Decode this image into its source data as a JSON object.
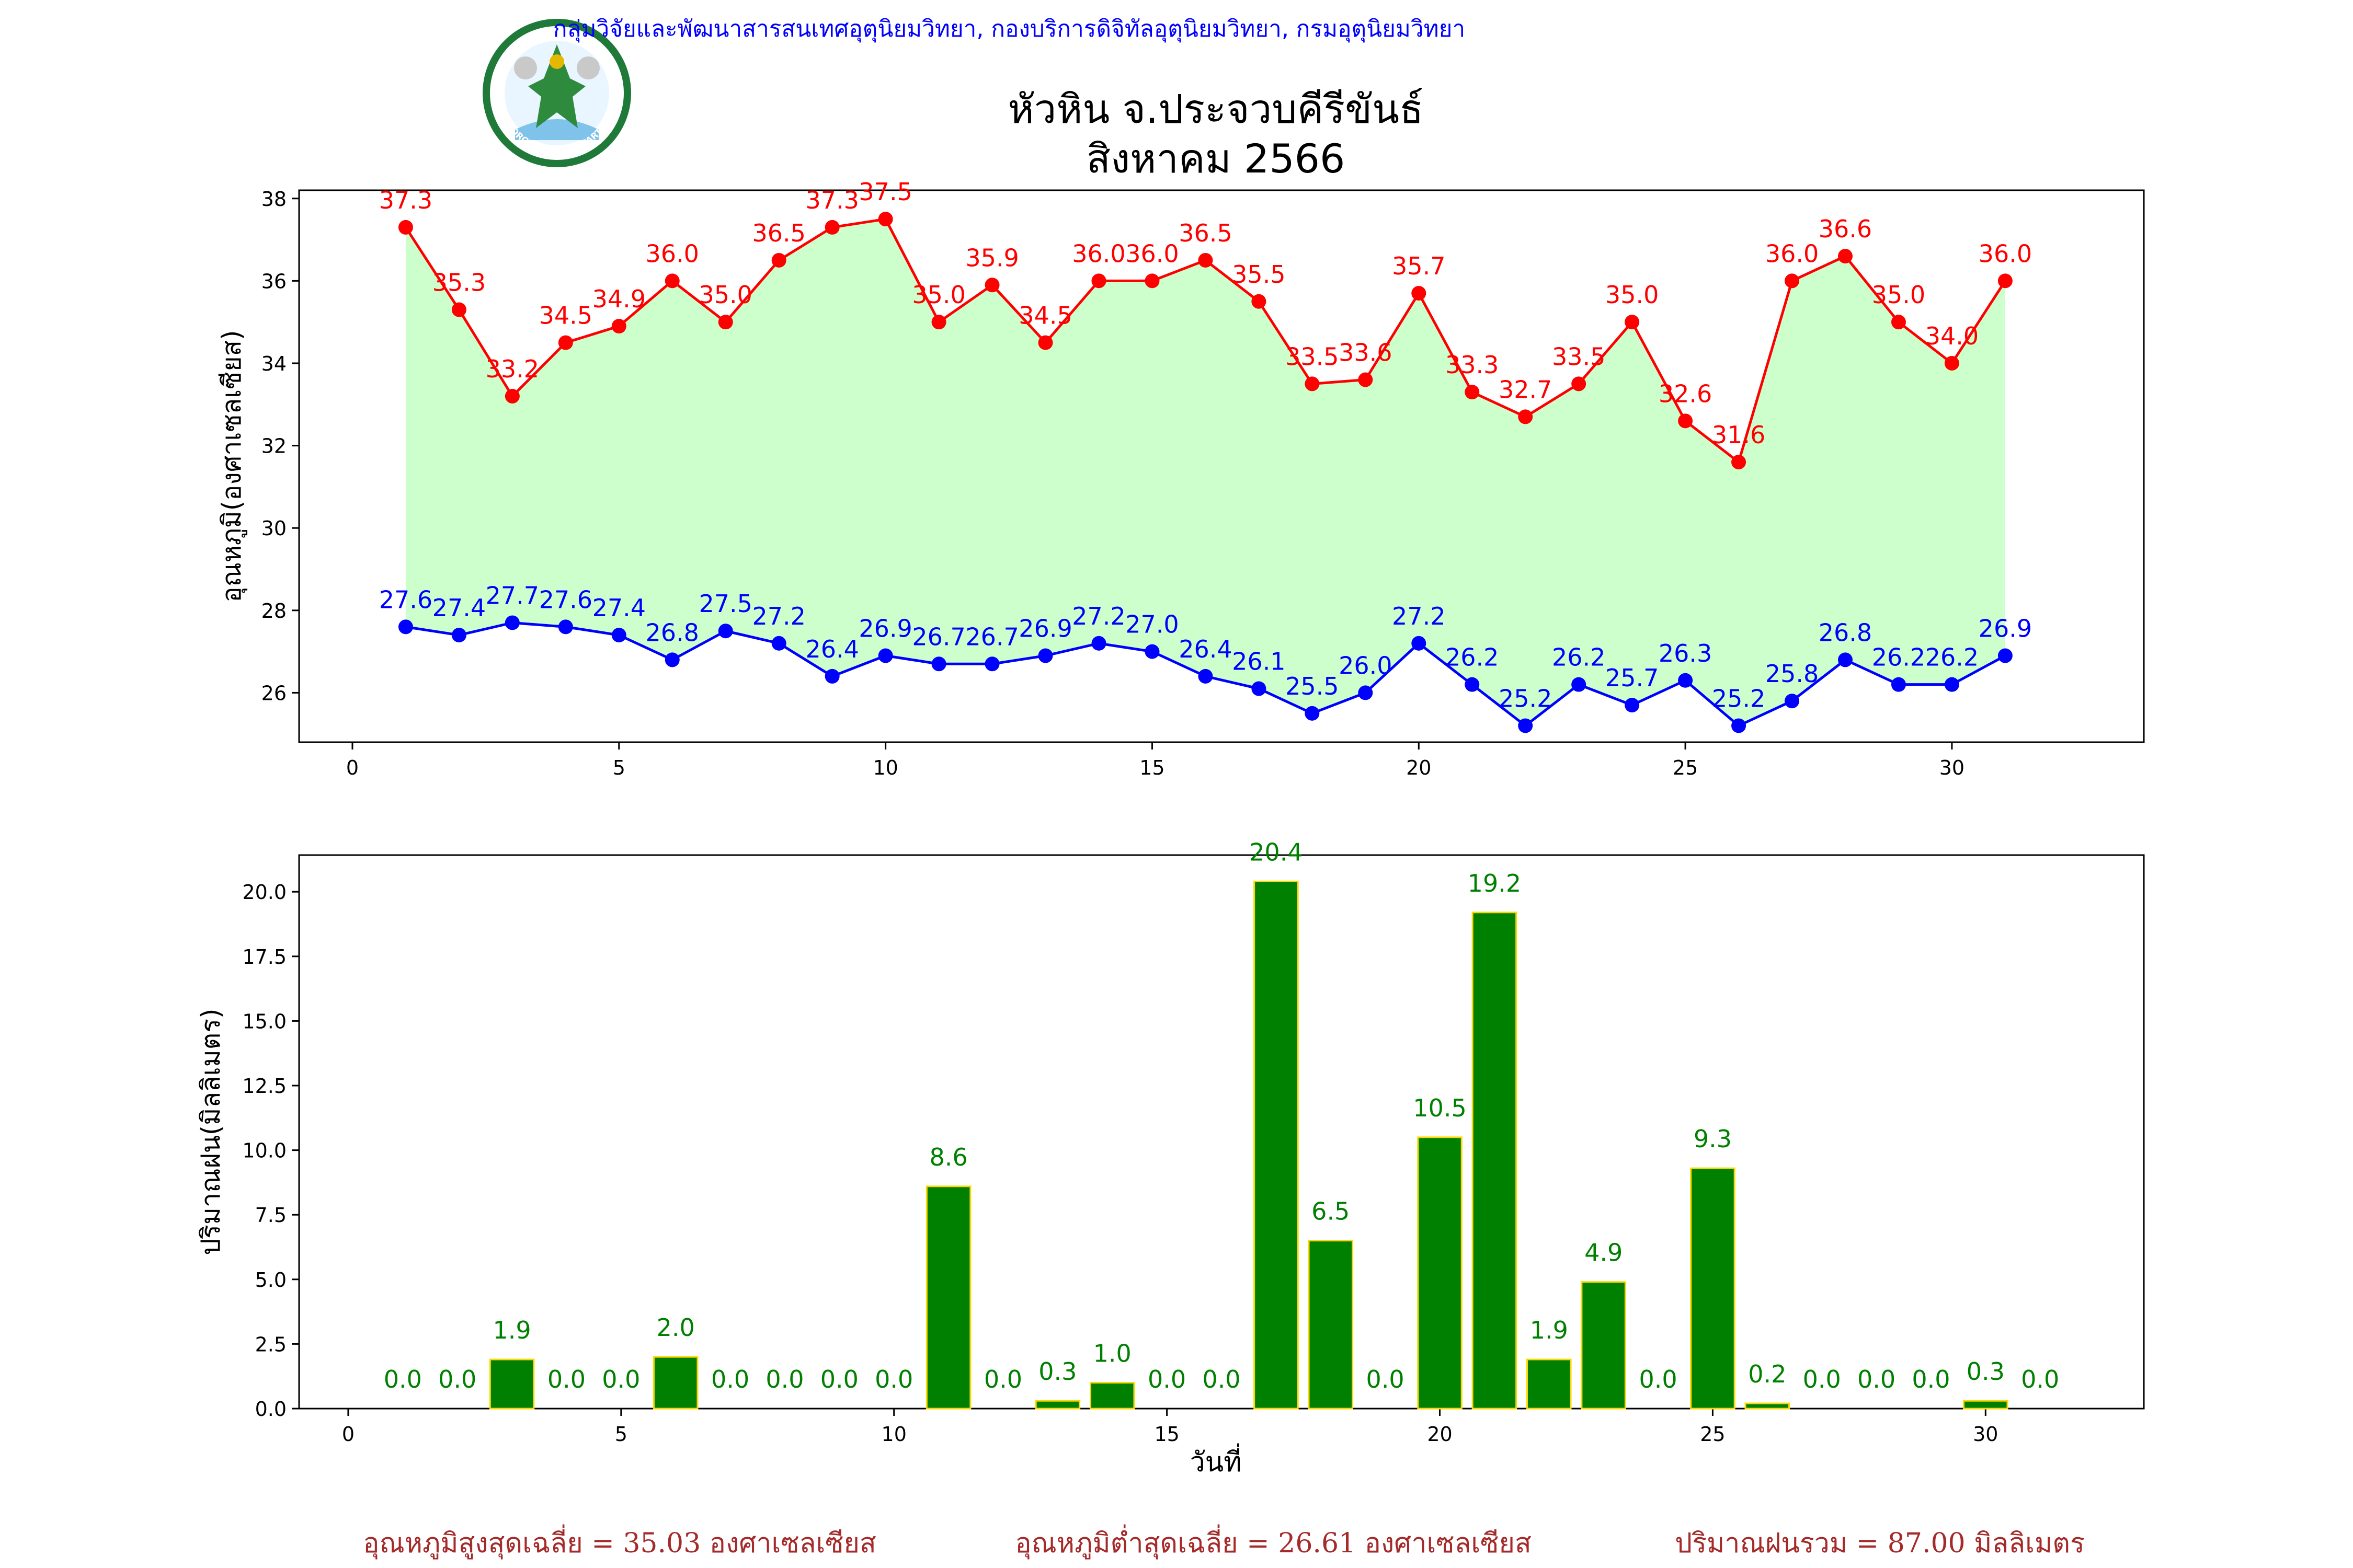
{
  "header": {
    "organization": "กลุ่มวิจัยและพัฒนาสารสนเทศอุตุนิยมวิทยา, กองบริการดิจิทัลอุตุนิยมวิทยา, กรมอุตุนิยมวิทยา",
    "title": "หัวหิน จ.ประจวบคีรีขันธ์",
    "subtitle": "สิงหาคม 2566",
    "logo_text_top": "กรมอุตุนิยมวิทยา",
    "logo_text_bottom": "METEOROLOGICAL DEPARTMENT"
  },
  "colors": {
    "max_temp": "#ff0000",
    "min_temp": "#0000ff",
    "fill": "#ccffcc",
    "rain_bar": "#008000",
    "rain_edge": "#ffd700",
    "org_text": "#0000ff",
    "footer_text": "#a52a2a"
  },
  "footer": {
    "avg_max": "อุณหภูมิสูงสุดเฉลี่ย = 35.03 องศาเซลเซียส",
    "avg_min": "อุณหภูมิต่ำสุดเฉลี่ย = 26.61 องศาเซลเซียส",
    "rain_total": "ปริมาณฝนรวม = 87.00 มิลลิเมตร"
  },
  "chart_data": [
    {
      "type": "line",
      "ylabel": "อุณหภูมิ(องศาเซลเซียส)",
      "xlabel": "",
      "xlim": [
        -1,
        33.6
      ],
      "ylim": [
        24.8,
        38.2
      ],
      "xticks": [
        0,
        5,
        10,
        15,
        20,
        25,
        30
      ],
      "yticks": [
        26,
        28,
        30,
        32,
        34,
        36,
        38
      ],
      "x": [
        1,
        2,
        3,
        4,
        5,
        6,
        7,
        8,
        9,
        10,
        11,
        12,
        13,
        14,
        15,
        16,
        17,
        18,
        19,
        20,
        21,
        22,
        23,
        24,
        25,
        26,
        27,
        28,
        29,
        30,
        31
      ],
      "series": [
        {
          "key": "max",
          "values": [
            37.3,
            35.3,
            33.2,
            34.5,
            34.9,
            36.0,
            35.0,
            36.5,
            37.3,
            37.5,
            35.0,
            35.9,
            34.5,
            36.0,
            36.0,
            36.5,
            35.5,
            33.5,
            33.6,
            35.7,
            33.3,
            32.7,
            33.5,
            35.0,
            32.6,
            31.6,
            36.0,
            36.6,
            35.0,
            34.0,
            36.0
          ],
          "labels": [
            "37.3",
            "35.3",
            "33.2",
            "34.5",
            "34.9",
            "36.0",
            "35.0",
            "36.5",
            "37.3",
            "37.5",
            "35.0",
            "35.9",
            "34.5",
            "36.0",
            "36.0",
            "36.5",
            "35.5",
            "33.5",
            "33.6",
            "35.7",
            "33.3",
            "32.7",
            "33.5",
            "35.0",
            "32.6",
            "31.6",
            "36.0",
            "36.6",
            "35.0",
            "34.0",
            "36.0"
          ]
        },
        {
          "key": "min",
          "values": [
            27.6,
            27.4,
            27.7,
            27.6,
            27.4,
            26.8,
            27.5,
            27.2,
            26.4,
            26.9,
            26.7,
            26.7,
            26.9,
            27.2,
            27.0,
            26.4,
            26.1,
            25.5,
            26.0,
            27.2,
            26.2,
            25.2,
            26.2,
            25.7,
            26.3,
            25.2,
            25.8,
            26.8,
            26.2,
            26.2,
            26.9
          ],
          "labels": [
            "27.6",
            "27.4",
            "27.7",
            "27.6",
            "27.4",
            "26.8",
            "27.5",
            "27.2",
            "26.4",
            "26.9",
            "26.7",
            "26.7",
            "26.9",
            "27.2",
            "27.0",
            "26.4",
            "26.1",
            "25.5",
            "26.0",
            "27.2",
            "26.2",
            "25.2",
            "26.2",
            "25.7",
            "26.3",
            "25.2",
            "25.8",
            "26.8",
            "26.2",
            "26.2",
            "26.9"
          ]
        }
      ]
    },
    {
      "type": "bar",
      "ylabel": "ปริมาณฝน(มิลลิเมตร)",
      "xlabel": "วันที่",
      "xlim": [
        -0.9,
        32.9
      ],
      "ylim": [
        0,
        21.42
      ],
      "xticks": [
        0,
        5,
        10,
        15,
        20,
        25,
        30
      ],
      "yticks": [
        "0.0",
        "2.5",
        "5.0",
        "7.5",
        "10.0",
        "12.5",
        "15.0",
        "17.5",
        "20.0"
      ],
      "x": [
        1,
        2,
        3,
        4,
        5,
        6,
        7,
        8,
        9,
        10,
        11,
        12,
        13,
        14,
        15,
        16,
        17,
        18,
        19,
        20,
        21,
        22,
        23,
        24,
        25,
        26,
        27,
        28,
        29,
        30,
        31
      ],
      "values": [
        0.0,
        0.0,
        1.9,
        0.0,
        0.0,
        2.0,
        0.0,
        0.0,
        0.0,
        0.0,
        8.6,
        0.0,
        0.3,
        1.0,
        0.0,
        0.0,
        20.4,
        6.5,
        0.0,
        10.5,
        19.2,
        1.9,
        4.9,
        0.0,
        9.3,
        0.2,
        0.0,
        0.0,
        0.0,
        0.3,
        0.0
      ],
      "labels": [
        "0.0",
        "0.0",
        "1.9",
        "0.0",
        "0.0",
        "2.0",
        "0.0",
        "0.0",
        "0.0",
        "0.0",
        "8.6",
        "0.0",
        "0.3",
        "1.0",
        "0.0",
        "0.0",
        "20.4",
        "6.5",
        "0.0",
        "10.5",
        "19.2",
        "1.9",
        "4.9",
        "0.0",
        "9.3",
        "0.2",
        "0.0",
        "0.0",
        "0.0",
        "0.3",
        "0.0"
      ]
    }
  ]
}
